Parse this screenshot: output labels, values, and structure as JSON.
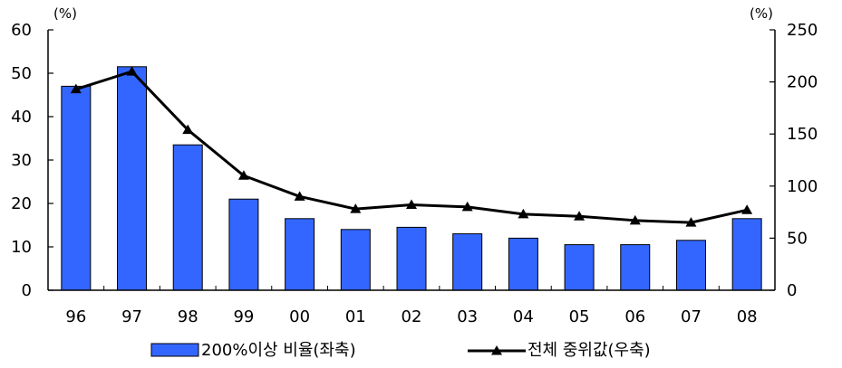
{
  "chart_data": {
    "type": "bar+line",
    "categories": [
      "96",
      "97",
      "98",
      "99",
      "00",
      "01",
      "02",
      "03",
      "04",
      "05",
      "06",
      "07",
      "08"
    ],
    "series": [
      {
        "name": "200%이상 비율(좌축)",
        "type": "bar",
        "axis": "left",
        "color": "#3366ff",
        "values": [
          47,
          51.5,
          33.5,
          21,
          16.5,
          14,
          14.5,
          13,
          12,
          10.5,
          10.5,
          11.5,
          16.5
        ]
      },
      {
        "name": "전체 중위값(우축)",
        "type": "line",
        "axis": "right",
        "color": "#000000",
        "marker": "triangle",
        "values": [
          193,
          210,
          154,
          110,
          90,
          78,
          82,
          80,
          73,
          71,
          67,
          65,
          77
        ]
      }
    ],
    "left_axis": {
      "unit": "(%)",
      "ylim": [
        0,
        60
      ],
      "ticks": [
        0,
        10,
        20,
        30,
        40,
        50,
        60
      ]
    },
    "right_axis": {
      "unit": "(%)",
      "ylim": [
        0,
        250
      ],
      "ticks": [
        0,
        50,
        100,
        150,
        200,
        250
      ]
    },
    "grid": false,
    "legend_position": "bottom"
  }
}
